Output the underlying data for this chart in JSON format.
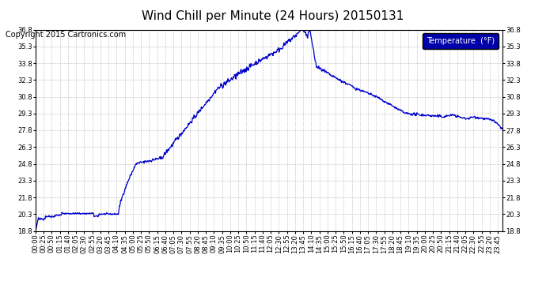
{
  "title": "Wind Chill per Minute (24 Hours) 20150131",
  "copyright": "Copyright 2015 Cartronics.com",
  "legend_label": "Temperature  (°F)",
  "line_color": "#0000cc",
  "legend_bg": "#0000aa",
  "legend_text_color": "#ffffff",
  "bg_color": "#ffffff",
  "grid_color": "#bbbbbb",
  "ylim": [
    18.8,
    36.8
  ],
  "yticks": [
    18.8,
    20.3,
    21.8,
    23.3,
    24.8,
    26.3,
    27.8,
    29.3,
    30.8,
    32.3,
    33.8,
    35.3,
    36.8
  ],
  "title_fontsize": 11,
  "copyright_fontsize": 7,
  "tick_fontsize": 6,
  "line_width": 0.9
}
